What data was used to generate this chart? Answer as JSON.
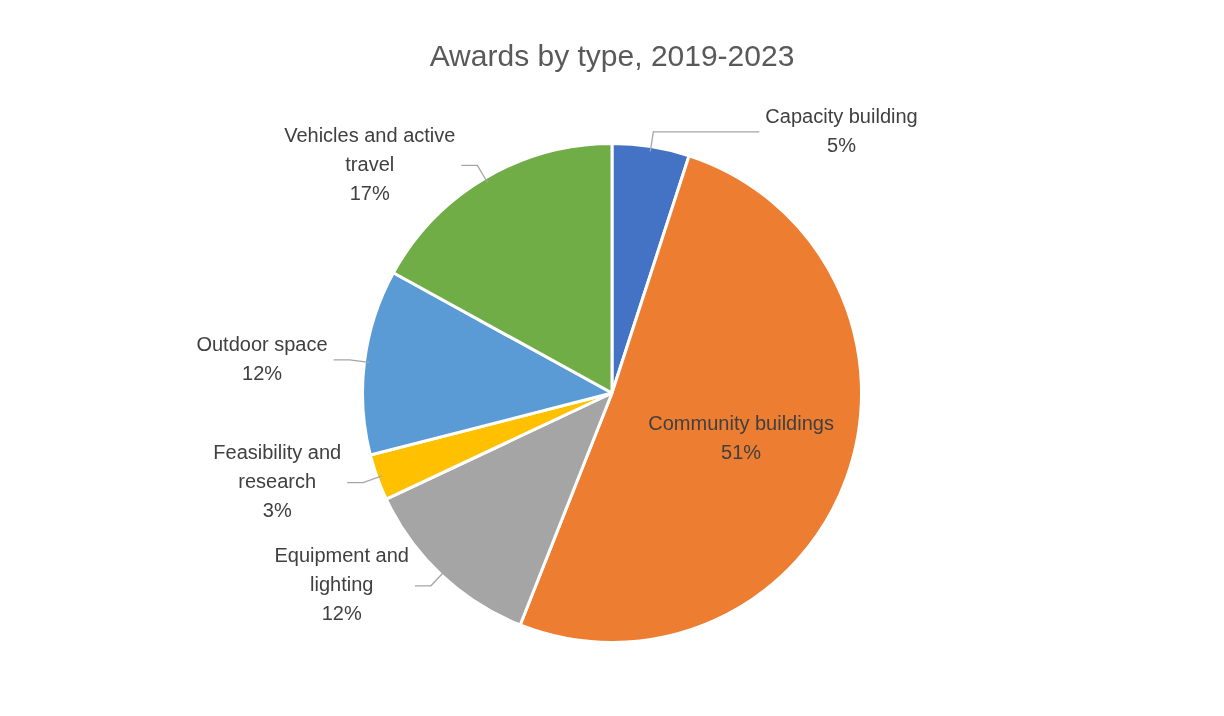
{
  "chart_data": {
    "type": "pie",
    "title": "Awards by type, 2019-2023",
    "categories": [
      "Capacity building",
      "Community buildings",
      "Equipment and lighting",
      "Feasibility and research",
      "Outdoor space",
      "Vehicles and active travel"
    ],
    "values": [
      5,
      51,
      12,
      3,
      12,
      17
    ],
    "value_labels": [
      "5%",
      "51%",
      "12%",
      "3%",
      "12%",
      "17%"
    ],
    "colors": [
      "#4472c4",
      "#ed7d31",
      "#a5a5a5",
      "#ffc000",
      "#5b9bd5",
      "#70ad47"
    ]
  }
}
